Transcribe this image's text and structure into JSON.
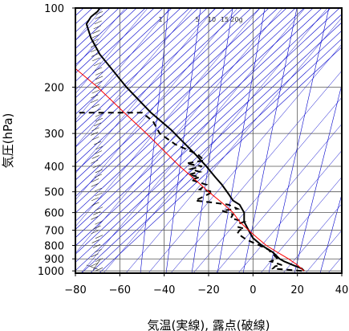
{
  "chart_data": {
    "type": "line",
    "title": "",
    "xlabel": "気温(実線), 露点(破線)",
    "ylabel": "気圧(hPa)",
    "xlim": [
      -80,
      40
    ],
    "ylim": [
      1020,
      100
    ],
    "y_scale": "log",
    "x_ticks": [
      "−80",
      "−60",
      "−40",
      "−20",
      "0",
      "20",
      "40"
    ],
    "x_tick_values": [
      -80,
      -60,
      -40,
      -20,
      0,
      20,
      40
    ],
    "y_ticks": [
      "100",
      "200",
      "300",
      "400",
      "500",
      "600",
      "700",
      "800",
      "900",
      "1000"
    ],
    "y_tick_values": [
      100,
      200,
      300,
      400,
      500,
      600,
      700,
      800,
      900,
      1000
    ],
    "grid": true,
    "mixing_ratio_labels": [
      "1",
      "5",
      "10",
      "15",
      "20g"
    ],
    "colors": {
      "temperature": "#000000",
      "dewpoint": "#000000",
      "parcel": "#ff0000",
      "isotherm": "#0000cc",
      "grid": "#000000"
    },
    "series": [
      {
        "style": "solid",
        "points": [
          [
            23,
            1000
          ],
          [
            22,
            980
          ],
          [
            18,
            950
          ],
          [
            14,
            920
          ],
          [
            12,
            900
          ],
          [
            9,
            850
          ],
          [
            4,
            800
          ],
          [
            0,
            750
          ],
          [
            -2,
            700
          ],
          [
            -4,
            650
          ],
          [
            -4,
            620
          ],
          [
            -4,
            600
          ],
          [
            -5,
            580
          ],
          [
            -6,
            560
          ],
          [
            -9,
            540
          ],
          [
            -11,
            510
          ],
          [
            -14,
            470
          ],
          [
            -17,
            440
          ],
          [
            -21,
            400
          ],
          [
            -26,
            360
          ],
          [
            -32,
            320
          ],
          [
            -37,
            290
          ],
          [
            -46,
            250
          ],
          [
            -57,
            200
          ],
          [
            -69,
            150
          ],
          [
            -73,
            130
          ],
          [
            -75,
            115
          ],
          [
            -73,
            108
          ],
          [
            -70,
            103
          ],
          [
            -69,
            100
          ]
        ]
      },
      {
        "style": "dashed",
        "points": [
          [
            22,
            1000
          ],
          [
            9,
            980
          ],
          [
            10,
            960
          ],
          [
            13,
            950
          ],
          [
            8,
            920
          ],
          [
            11,
            900
          ],
          [
            10,
            880
          ],
          [
            8,
            850
          ],
          [
            7,
            830
          ],
          [
            3,
            800
          ],
          [
            0,
            780
          ],
          [
            -3,
            760
          ],
          [
            -5,
            740
          ],
          [
            -7,
            720
          ],
          [
            -6,
            700
          ],
          [
            -4,
            690
          ],
          [
            -7,
            680
          ],
          [
            -6,
            660
          ],
          [
            -4,
            650
          ],
          [
            -10,
            630
          ],
          [
            -9,
            610
          ],
          [
            -14,
            590
          ],
          [
            -7,
            580
          ],
          [
            -11,
            560
          ],
          [
            -18,
            550
          ],
          [
            -26,
            540
          ],
          [
            -24,
            530
          ],
          [
            -20,
            510
          ],
          [
            -18,
            500
          ],
          [
            -24,
            490
          ],
          [
            -21,
            470
          ],
          [
            -28,
            450
          ],
          [
            -24,
            440
          ],
          [
            -29,
            430
          ],
          [
            -24,
            420
          ],
          [
            -28,
            410
          ],
          [
            -23,
            400
          ],
          [
            -30,
            390
          ],
          [
            -22,
            380
          ],
          [
            -25,
            360
          ],
          [
            -35,
            330
          ],
          [
            -42,
            300
          ],
          [
            -45,
            270
          ],
          [
            -50,
            250
          ],
          [
            -60,
            250
          ],
          [
            -80,
            250
          ]
        ]
      },
      {
        "style": "parcel",
        "points": [
          [
            23,
            1000
          ],
          [
            20,
            950
          ],
          [
            16,
            900
          ],
          [
            11,
            850
          ],
          [
            6,
            800
          ],
          [
            2,
            750
          ],
          [
            -2,
            700
          ],
          [
            -6,
            650
          ],
          [
            -9,
            600
          ],
          [
            -14,
            550
          ],
          [
            -20,
            500
          ],
          [
            -26,
            450
          ],
          [
            -33,
            400
          ],
          [
            -40,
            350
          ],
          [
            -48,
            300
          ],
          [
            -58,
            250
          ],
          [
            -70,
            200
          ],
          [
            -80,
            170
          ]
        ]
      }
    ],
    "wind_column": "wind barbs along the left side (about −72 °C), 1000–100 hPa"
  }
}
